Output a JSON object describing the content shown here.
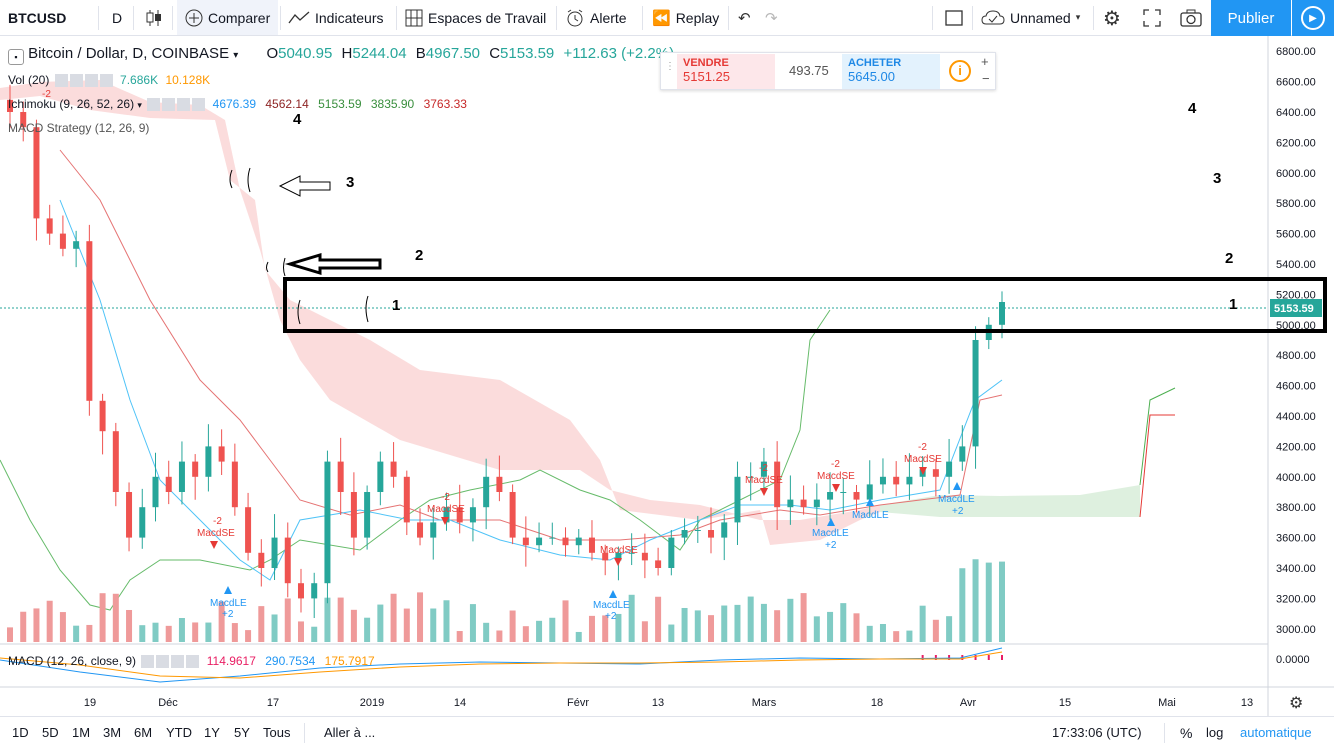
{
  "toolbar": {
    "symbol": "BTCUSD",
    "interval": "D",
    "compare": "Comparer",
    "indicators": "Indicateurs",
    "workspaces": "Espaces de Travail",
    "alert": "Alerte",
    "replay": "Replay",
    "layout_name": "Unnamed",
    "publish": "Publier"
  },
  "legend": {
    "main_title": "Bitcoin / Dollar, D, COINBASE",
    "o_label": "O",
    "o_value": "5040.95",
    "h_label": "H",
    "h_value": "5244.04",
    "b_label": "B",
    "b_value": "4967.50",
    "c_label": "C",
    "c_value": "5153.59",
    "change": "+112.63 (+2.2%)",
    "vol_label": "Vol (20)",
    "vol_value": "7.686K",
    "vol_ma": "10.128K",
    "ichimoku_label": "Ichimoku (9, 26, 52, 26)",
    "ichi_v1": "4676.39",
    "ichi_v2": "4562.14",
    "ichi_v3": "5153.59",
    "ichi_v4": "3835.90",
    "ichi_v5": "3763.33",
    "macd_strat_label": "MACD Strategy (12, 26, 9)",
    "macd_label": "MACD (12, 26, close, 9)",
    "macd_v1": "114.9617",
    "macd_v2": "290.7534",
    "macd_v3": "175.7917"
  },
  "trade_panel": {
    "sell_label": "VENDRE",
    "sell_price": "5151.25",
    "spread": "493.75",
    "buy_label": "ACHETER",
    "buy_price": "5645.00"
  },
  "price_axis": {
    "ticks": [
      "6800.00",
      "6600.00",
      "6400.00",
      "6200.00",
      "6000.00",
      "5800.00",
      "5600.00",
      "5400.00",
      "5200.00",
      "5000.00",
      "4800.00",
      "4600.00",
      "4400.00",
      "4200.00",
      "4000.00",
      "3800.00",
      "3600.00",
      "3400.00",
      "3200.00",
      "3000.00"
    ],
    "current_price": "5153.59",
    "macd_tick": "0.0000"
  },
  "time_axis": {
    "labels": [
      "19",
      "Déc",
      "17",
      "2019",
      "14",
      "Févr",
      "13",
      "Mars",
      "18",
      "Avr",
      "15",
      "Mai",
      "13"
    ]
  },
  "annotations": {
    "left": [
      "1",
      "2",
      "3",
      "4"
    ],
    "right": [
      "1",
      "2",
      "3",
      "4"
    ]
  },
  "signals": {
    "macd_se": "MacdSE",
    "macd_le": "MacdLE",
    "minus2": "-2",
    "plus2": "+2"
  },
  "bottombar": {
    "ranges": [
      "1D",
      "5D",
      "1M",
      "3M",
      "6M",
      "YTD",
      "1Y",
      "5Y",
      "Tous"
    ],
    "goto": "Aller à ...",
    "time": "17:33:06 (UTC)",
    "percent": "%",
    "log": "log",
    "auto": "automatique"
  },
  "chart_data": {
    "type": "candlestick",
    "y_range": [
      2900,
      6900
    ],
    "up_color": "#26a69a",
    "down_color": "#ef5350",
    "closes": [
      6400,
      6300,
      5700,
      5600,
      5500,
      5550,
      4500,
      4300,
      3900,
      3600,
      3800,
      4000,
      3900,
      4100,
      4000,
      4200,
      4100,
      3800,
      3500,
      3400,
      3600,
      3300,
      3200,
      3300,
      4100,
      3900,
      3600,
      3900,
      4100,
      4000,
      3700,
      3600,
      3700,
      3800,
      3700,
      3800,
      4000,
      3900,
      3600,
      3550,
      3600,
      3600,
      3550,
      3600,
      3500,
      3450,
      3500,
      3500,
      3450,
      3400,
      3600,
      3650,
      3650,
      3600,
      3700,
      4000,
      4000,
      4100,
      3800,
      3850,
      3800,
      3850,
      3900,
      3900,
      3850,
      3950,
      4000,
      3950,
      4000,
      4050,
      4000,
      4100,
      4200,
      4900,
      5000,
      5150
    ]
  }
}
